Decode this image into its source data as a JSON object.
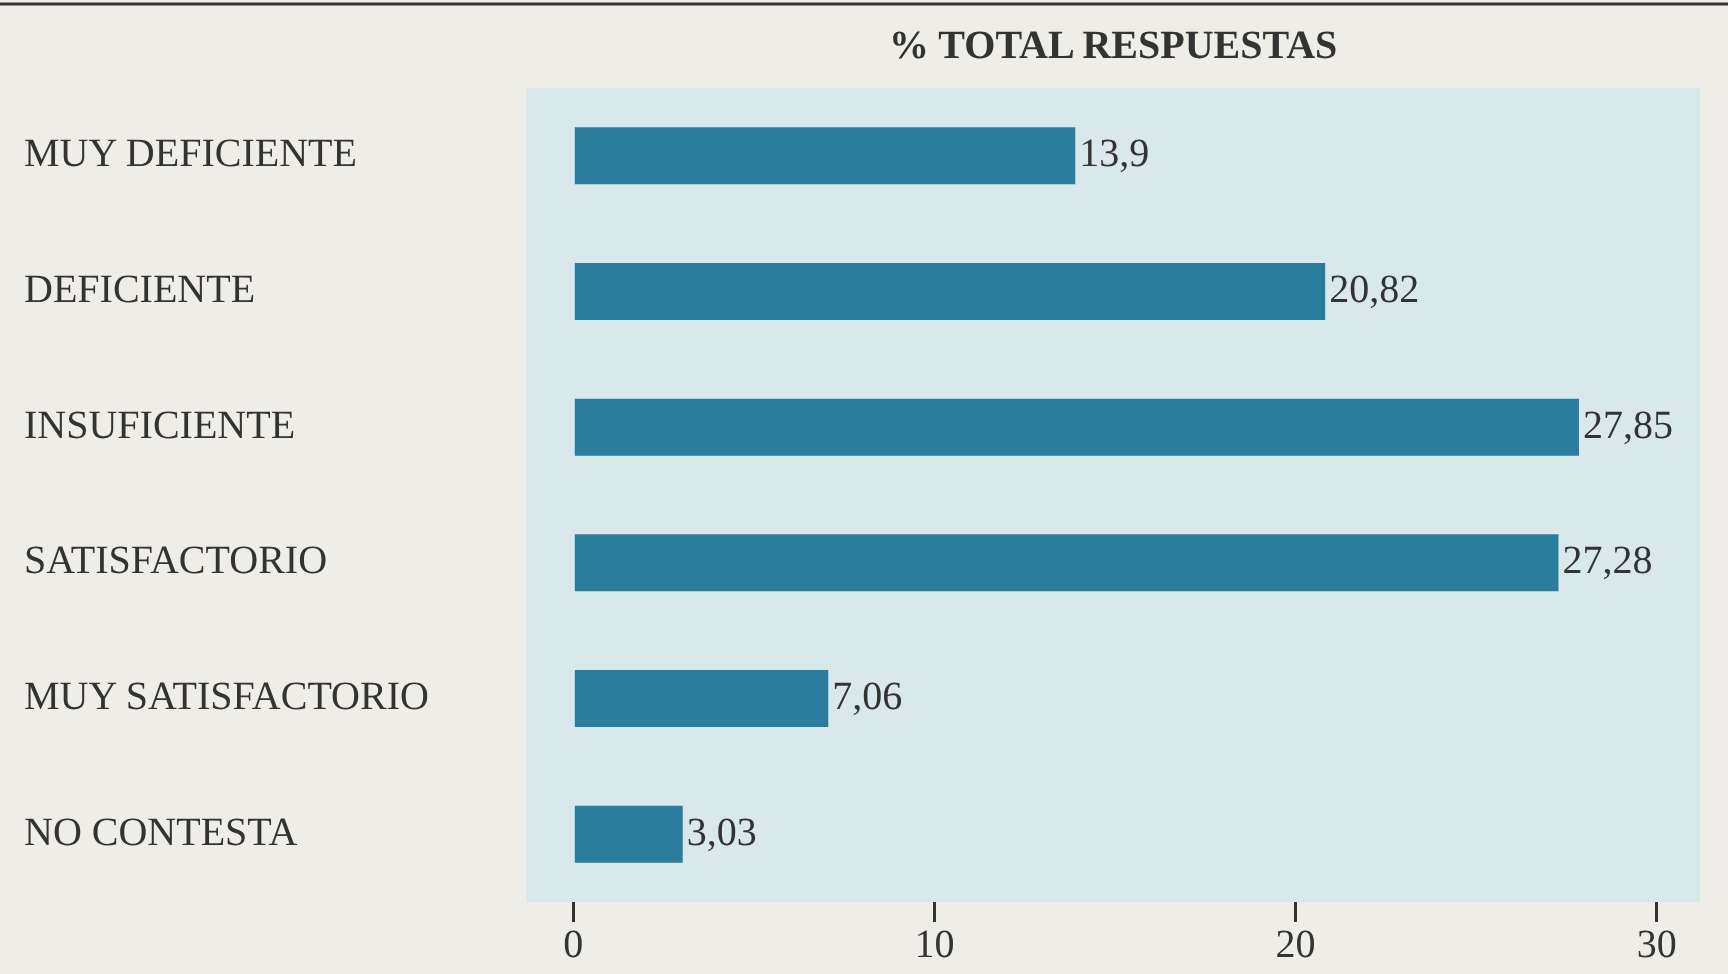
{
  "chart_data": {
    "type": "bar",
    "orientation": "horizontal",
    "title": "% TOTAL RESPUESTAS",
    "categories": [
      "MUY DEFICIENTE",
      "DEFICIENTE",
      "INSUFICIENTE",
      "SATISFACTORIO",
      "MUY SATISFACTORIO",
      "NO CONTESTA"
    ],
    "values": [
      13.9,
      20.82,
      27.85,
      27.28,
      7.06,
      3.03
    ],
    "value_labels": [
      "13,9",
      "20,82",
      "27,85",
      "27,28",
      "7,06",
      "3,03"
    ],
    "color": "#2a7d9c",
    "xlim": [
      -1.3,
      31.2
    ],
    "xticks": [
      0,
      10,
      20,
      30
    ],
    "grid": false,
    "legend": false
  }
}
